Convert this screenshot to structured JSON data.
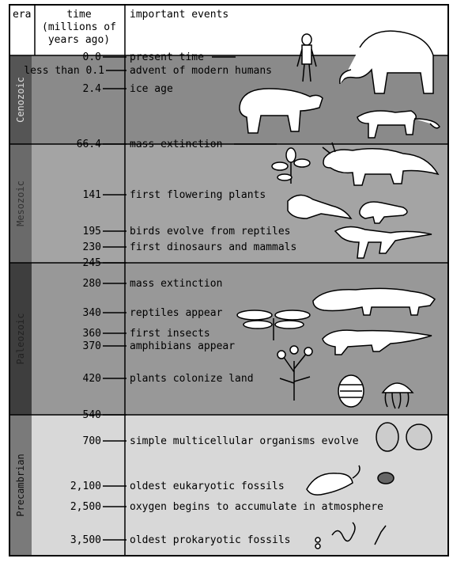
{
  "header": {
    "era": "era",
    "time_lines": [
      "time",
      "(millions of",
      "years ago)"
    ],
    "events": "important events"
  },
  "eras": [
    {
      "name": "Cenozoic"
    },
    {
      "name": "Mesozoic"
    },
    {
      "name": "Paleozoic"
    },
    {
      "name": "Precambrian"
    }
  ],
  "boundary_labels": [
    "66.4",
    "245",
    "540"
  ],
  "entries": [
    {
      "time": "0.0",
      "event": "present time"
    },
    {
      "time": "less than 0.1",
      "event": "advent of modern humans"
    },
    {
      "time": "2.4",
      "event": "ice age"
    },
    {
      "time": "66.4",
      "event": "mass extinction"
    },
    {
      "time": "141",
      "event": "first flowering plants"
    },
    {
      "time": "195",
      "event": "birds evolve from reptiles"
    },
    {
      "time": "230",
      "event": "first dinosaurs and mammals"
    },
    {
      "time": "280",
      "event": "mass extinction"
    },
    {
      "time": "340",
      "event": "reptiles appear"
    },
    {
      "time": "360",
      "event": "first insects"
    },
    {
      "time": "370",
      "event": "amphibians appear"
    },
    {
      "time": "420",
      "event": "plants colonize land"
    },
    {
      "time": "700",
      "event": "simple multicellular organisms evolve"
    },
    {
      "time": "2,100",
      "event": "oldest eukaryotic fossils"
    },
    {
      "time": "2,500",
      "event": "oxygen begins to accumulate in atmosphere"
    },
    {
      "time": "3,500",
      "event": "oldest prokaryotic fossils"
    }
  ],
  "illustrations": [
    "human-figure",
    "mammoth",
    "rhinoceros-like-mammal",
    "saber-toothed-cat",
    "flowering-plant",
    "triceratops",
    "primitive-bird",
    "small-mammal",
    "theropod-dinosaur",
    "dragonfly",
    "mammal-like-reptile",
    "amphibian",
    "land-plant",
    "trilobite",
    "jellyfish",
    "multicellular-spheres",
    "eukaryotic-cells",
    "prokaryotic-cells"
  ],
  "colors": {
    "cenozoic_bg": "#8a8a8a",
    "mesozoic_bg": "#a4a4a4",
    "paleozoic_bg": "#989898",
    "precambrian_bg": "#d8d8d8",
    "era_strip": "#555555"
  }
}
